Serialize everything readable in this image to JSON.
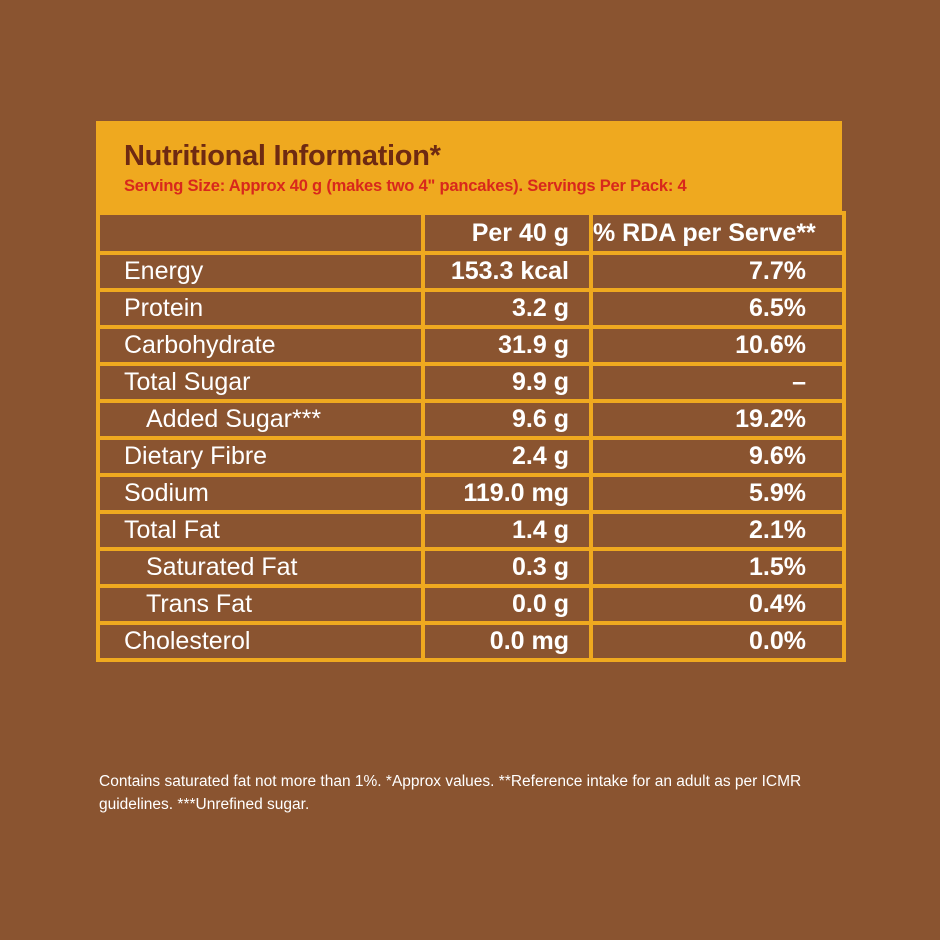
{
  "title": "Nutritional Information*",
  "subtitle": "Serving Size: Approx 40 g (makes two 4\" pancakes). Servings Per Pack: 4",
  "columns": [
    "",
    "Per 40 g",
    "% RDA per Serve**"
  ],
  "rows": [
    {
      "label": "Energy",
      "per": "153.3 kcal",
      "rda": "7.7%"
    },
    {
      "label": "Protein",
      "per": "3.2 g",
      "rda": "6.5%"
    },
    {
      "label": "Carbohydrate",
      "per": "31.9 g",
      "rda": "10.6%"
    },
    {
      "label": "Total Sugar",
      "per": "9.9 g",
      "rda": "–"
    },
    {
      "label": "Added Sugar***",
      "per": "9.6 g",
      "rda": "19.2%"
    },
    {
      "label": "Dietary Fibre",
      "per": "2.4 g",
      "rda": "9.6%"
    },
    {
      "label": "Sodium",
      "per": "119.0 mg",
      "rda": "5.9%"
    },
    {
      "label": "Total Fat",
      "per": "1.4 g",
      "rda": "2.1%"
    },
    {
      "label": "Saturated Fat",
      "per": "0.3 g",
      "rda": "1.5%"
    },
    {
      "label": "Trans Fat",
      "per": "0.0 g",
      "rda": "0.4%"
    },
    {
      "label": "Cholesterol",
      "per": "0.0 mg",
      "rda": "0.0%"
    }
  ],
  "footnote": "Contains saturated fat not more than 1%. *Approx values. **Reference intake for an adult as per ICMR guidelines. ***Unrefined sugar.",
  "colors": {
    "background": "#8a5430",
    "header": "#efa91f",
    "title": "#6e2a12",
    "subtitle": "#d8281c",
    "text": "#ffffff"
  }
}
